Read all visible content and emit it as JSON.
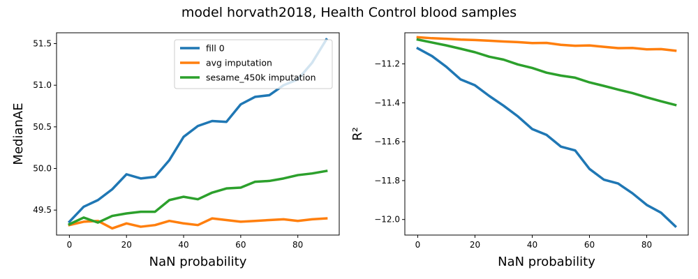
{
  "figure": {
    "title": "model horvath2018, Health Control blood samples"
  },
  "colors": {
    "fill0": "#1f77b4",
    "avg": "#ff7f0e",
    "sesame": "#2ca02c"
  },
  "chart_data": [
    {
      "type": "line",
      "title": "",
      "xlabel": "NaN probability",
      "ylabel": "MedianAE",
      "xlim": [
        -4.5,
        94.5
      ],
      "ylim": [
        49.2,
        51.63
      ],
      "xticks": [
        0,
        20,
        40,
        60,
        80
      ],
      "yticks": [
        49.5,
        50.0,
        50.5,
        51.0,
        51.5
      ],
      "ytick_labels": [
        "49.5",
        "50.0",
        "50.5",
        "51.0",
        "51.5"
      ],
      "x": [
        0,
        5,
        10,
        15,
        20,
        25,
        30,
        35,
        40,
        45,
        50,
        55,
        60,
        65,
        70,
        75,
        80,
        85,
        90
      ],
      "legend": {
        "placement": "upper right"
      },
      "series": [
        {
          "name": "fill 0",
          "color_key": "fill0",
          "values": [
            49.36,
            49.54,
            49.62,
            49.75,
            49.93,
            49.88,
            49.9,
            50.1,
            50.38,
            50.51,
            50.57,
            50.56,
            50.77,
            50.86,
            50.88,
            51.0,
            51.07,
            51.27,
            51.55
          ]
        },
        {
          "name": "avg imputation",
          "color_key": "avg",
          "values": [
            49.32,
            49.36,
            49.37,
            49.28,
            49.34,
            49.3,
            49.32,
            49.37,
            49.34,
            49.32,
            49.4,
            49.38,
            49.36,
            49.37,
            49.38,
            49.39,
            49.37,
            49.39,
            49.4
          ]
        },
        {
          "name": "sesame_450k imputation",
          "color_key": "sesame",
          "values": [
            49.33,
            49.41,
            49.35,
            49.43,
            49.46,
            49.48,
            49.48,
            49.62,
            49.66,
            49.63,
            49.71,
            49.76,
            49.77,
            49.84,
            49.85,
            49.88,
            49.92,
            49.94,
            49.97
          ]
        }
      ]
    },
    {
      "type": "line",
      "title": "",
      "xlabel": "NaN probability",
      "ylabel": "R²",
      "xlim": [
        -4.5,
        94.5
      ],
      "ylim": [
        -12.08,
        -11.04
      ],
      "xticks": [
        0,
        20,
        40,
        60,
        80
      ],
      "yticks": [
        -11.2,
        -11.4,
        -11.6,
        -11.8,
        -12.0
      ],
      "ytick_labels": [
        "−11.2",
        "−11.4",
        "−11.6",
        "−11.8",
        "−12.0"
      ],
      "x": [
        0,
        5,
        10,
        15,
        20,
        25,
        30,
        35,
        40,
        45,
        50,
        55,
        60,
        65,
        70,
        75,
        80,
        85,
        90
      ],
      "series": [
        {
          "name": "fill 0",
          "color_key": "fill0",
          "values": [
            -11.12,
            -11.16,
            -11.215,
            -11.28,
            -11.31,
            -11.365,
            -11.415,
            -11.47,
            -11.535,
            -11.565,
            -11.625,
            -11.645,
            -11.74,
            -11.795,
            -11.815,
            -11.865,
            -11.925,
            -11.965,
            -12.035
          ]
        },
        {
          "name": "avg imputation",
          "color_key": "avg",
          "values": [
            -11.063,
            -11.068,
            -11.071,
            -11.075,
            -11.077,
            -11.081,
            -11.085,
            -11.088,
            -11.093,
            -11.092,
            -11.102,
            -11.107,
            -11.105,
            -11.112,
            -11.119,
            -11.118,
            -11.125,
            -11.124,
            -11.132
          ]
        },
        {
          "name": "sesame_450k imputation",
          "color_key": "sesame",
          "values": [
            -11.075,
            -11.09,
            -11.105,
            -11.122,
            -11.14,
            -11.163,
            -11.178,
            -11.203,
            -11.221,
            -11.245,
            -11.26,
            -11.271,
            -11.295,
            -11.313,
            -11.332,
            -11.35,
            -11.372,
            -11.392,
            -11.411
          ]
        }
      ]
    }
  ]
}
